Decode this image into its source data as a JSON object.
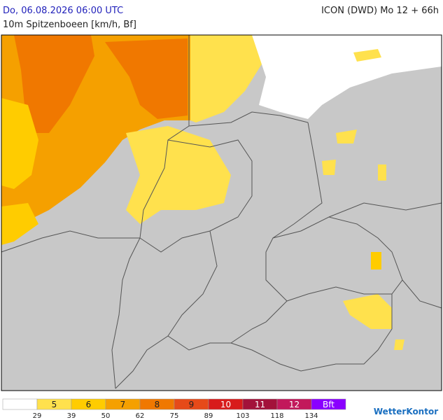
{
  "header": {
    "title": "Do, 06.08.2026 06:00 UTC",
    "model": "ICON (DWD) Mo 12 + 66h",
    "subtitle": "10m Spitzenboeen [km/h, Bf]"
  },
  "legend": {
    "classes": [
      {
        "color": "#ffffff"
      },
      {
        "label": 5,
        "color": "#ffe14d"
      },
      {
        "label": 6,
        "color": "#ffcc00"
      },
      {
        "label": 7,
        "color": "#f5a000"
      },
      {
        "label": 8,
        "color": "#f07800"
      },
      {
        "label": 9,
        "color": "#e64a19"
      },
      {
        "label": 10,
        "color": "#d81b1b"
      },
      {
        "label": 11,
        "color": "#a3123a"
      },
      {
        "label": 12,
        "color": "#c2185b"
      },
      {
        "label": "Bft",
        "color": "#8a00ff"
      }
    ],
    "thresholds": [
      29,
      39,
      50,
      62,
      75,
      89,
      103,
      118,
      134
    ]
  },
  "logo": "WetterKontor"
}
